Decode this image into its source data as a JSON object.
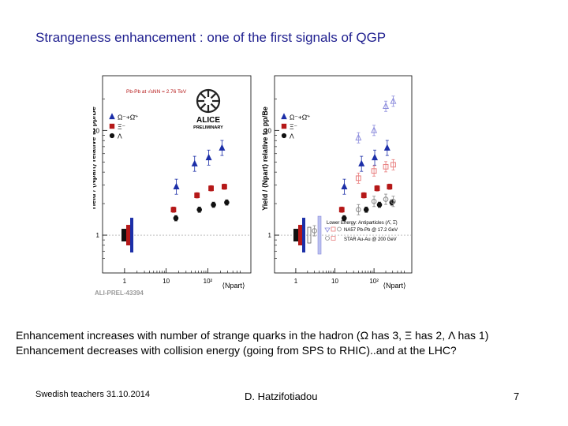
{
  "slide": {
    "title": "Strangeness enhancement : one of the first signals of QGP",
    "bullets": [
      "Enhancement increases with number of strange quarks in the hadron (Ω has 3, Ξ has 2, Λ has 1)",
      "Enhancement decreases with collision energy (going from SPS to RHIC)..and at the LHC?"
    ],
    "footer": {
      "left": "Swedish teachers 31.10.2014",
      "center": "D. Hatzifotiadou",
      "page": "7"
    },
    "figure_id": "ALI-PREL-43394"
  },
  "chart_data": [
    {
      "type": "scatter",
      "panel": "left",
      "xscale": "log",
      "yscale": "log",
      "xlim": [
        0.5,
        700
      ],
      "ylim": [
        0.5,
        30
      ],
      "xticks": [
        "1",
        "10",
        "10²"
      ],
      "yticks": [
        "1",
        "10"
      ],
      "xlabel": "⟨Npart⟩",
      "ylabel": "Yield / ⟨Npart⟩ relative to pp/Be",
      "annotation": "Pb-Pb at √sNN = 2.76 TeV",
      "logo": "ALICE",
      "logo_sub": "PRELIMINARY",
      "legend": [
        "Ω⁻+Ω̄⁺",
        "Ξ⁻",
        "Λ"
      ],
      "legend_position": "top-left",
      "series": [
        {
          "name": "Ω⁻+Ω̄⁺",
          "marker": "triangle",
          "color": "#1c2fa8",
          "points": [
            [
              20,
              2.9
            ],
            [
              55,
              4.8
            ],
            [
              120,
              5.5
            ],
            [
              250,
              6.8
            ]
          ]
        },
        {
          "name": "Ξ⁻",
          "marker": "square",
          "color": "#b51818",
          "points": [
            [
              15,
              1.75
            ],
            [
              55,
              2.4
            ],
            [
              120,
              2.8
            ],
            [
              250,
              2.9
            ]
          ]
        },
        {
          "name": "Λ",
          "marker": "circle",
          "color": "#111111",
          "points": [
            [
              15,
              1.45
            ],
            [
              55,
              1.75
            ],
            [
              120,
              1.95
            ],
            [
              250,
              2.05
            ]
          ]
        }
      ]
    },
    {
      "type": "scatter",
      "panel": "right",
      "xscale": "log",
      "yscale": "log",
      "xlim": [
        0.5,
        700
      ],
      "ylim": [
        0.5,
        30
      ],
      "xticks": [
        "1",
        "10",
        "10²"
      ],
      "yticks": [
        "1",
        "10"
      ],
      "xlabel": "⟨Npart⟩",
      "ylabel": "Yield / ⟨Npart⟩ relative to pp/Be",
      "legend": [
        "Ω⁻+Ω̄⁺",
        "Ξ⁻",
        "Λ"
      ],
      "legend_position": "top-left",
      "lower_energy_legend": [
        "Lower Energy: Antiparticles (Λ̄, Ξ̄)",
        "NA57 Pb-Pb @ 17.2 GeV",
        "STAR Au-Au @ 200 GeV"
      ],
      "series": [
        {
          "name": "Ω⁻+Ω̄⁺",
          "marker": "triangle",
          "color": "#1c2fa8",
          "points": [
            [
              20,
              2.9
            ],
            [
              55,
              4.8
            ],
            [
              120,
              5.5
            ],
            [
              250,
              6.8
            ]
          ]
        },
        {
          "name": "Ξ⁻",
          "marker": "square",
          "color": "#b51818",
          "points": [
            [
              15,
              1.75
            ],
            [
              55,
              2.4
            ],
            [
              120,
              2.8
            ],
            [
              250,
              2.9
            ]
          ]
        },
        {
          "name": "Λ",
          "marker": "circle",
          "color": "#111111",
          "points": [
            [
              15,
              1.45
            ],
            [
              55,
              1.75
            ],
            [
              120,
              1.95
            ],
            [
              250,
              2.05
            ]
          ]
        },
        {
          "name": "NA57 Pb-Pb @ 17.2 GeV",
          "marker": "open-triangle",
          "color": "#8c8cdc",
          "points": [
            [
              40,
              8.5
            ],
            [
              100,
              10
            ],
            [
              200,
              17
            ],
            [
              310,
              19
            ]
          ]
        },
        {
          "name": "NA57 Pb-Pb @ 17.2 GeV",
          "marker": "open-square",
          "color": "#e87c7c",
          "points": [
            [
              40,
              3.5
            ],
            [
              100,
              4.1
            ],
            [
              200,
              4.5
            ],
            [
              310,
              4.7
            ]
          ]
        },
        {
          "name": "STAR Au-Au @ 200 GeV",
          "marker": "open-circle",
          "color": "#888888",
          "points": [
            [
              3,
              1.1
            ],
            [
              40,
              1.75
            ],
            [
              100,
              2.1
            ],
            [
              200,
              2.2
            ],
            [
              310,
              2.1
            ]
          ]
        }
      ]
    }
  ]
}
